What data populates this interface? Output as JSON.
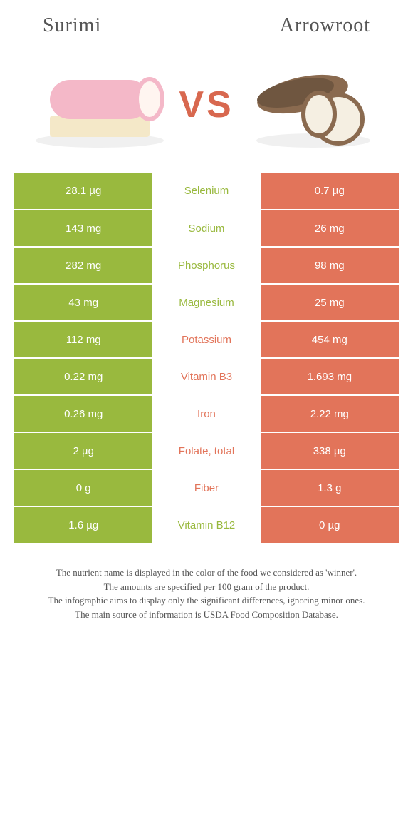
{
  "header": {
    "left_title": "Surimi",
    "right_title": "Arrowroot"
  },
  "vs_label": "VS",
  "colors": {
    "green": "#99b93e",
    "orange": "#e2745a",
    "vs": "#d8684f",
    "title": "#555555"
  },
  "rows": [
    {
      "nutrient": "Selenium",
      "left": "28.1 µg",
      "right": "0.7 µg",
      "winner": "left"
    },
    {
      "nutrient": "Sodium",
      "left": "143 mg",
      "right": "26 mg",
      "winner": "left"
    },
    {
      "nutrient": "Phosphorus",
      "left": "282 mg",
      "right": "98 mg",
      "winner": "left"
    },
    {
      "nutrient": "Magnesium",
      "left": "43 mg",
      "right": "25 mg",
      "winner": "left"
    },
    {
      "nutrient": "Potassium",
      "left": "112 mg",
      "right": "454 mg",
      "winner": "right"
    },
    {
      "nutrient": "Vitamin B3",
      "left": "0.22 mg",
      "right": "1.693 mg",
      "winner": "right"
    },
    {
      "nutrient": "Iron",
      "left": "0.26 mg",
      "right": "2.22 mg",
      "winner": "right"
    },
    {
      "nutrient": "Folate, total",
      "left": "2 µg",
      "right": "338 µg",
      "winner": "right"
    },
    {
      "nutrient": "Fiber",
      "left": "0 g",
      "right": "1.3 g",
      "winner": "right"
    },
    {
      "nutrient": "Vitamin B12",
      "left": "1.6 µg",
      "right": "0 µg",
      "winner": "left"
    }
  ],
  "notes": {
    "line1": "The nutrient name is displayed in the color of the food we considered as 'winner'.",
    "line2": "The amounts are specified per 100 gram of the product.",
    "line3": "The infographic aims to display only the significant differences, ignoring minor ones.",
    "line4": "The main source of information is USDA Food Composition Database."
  }
}
